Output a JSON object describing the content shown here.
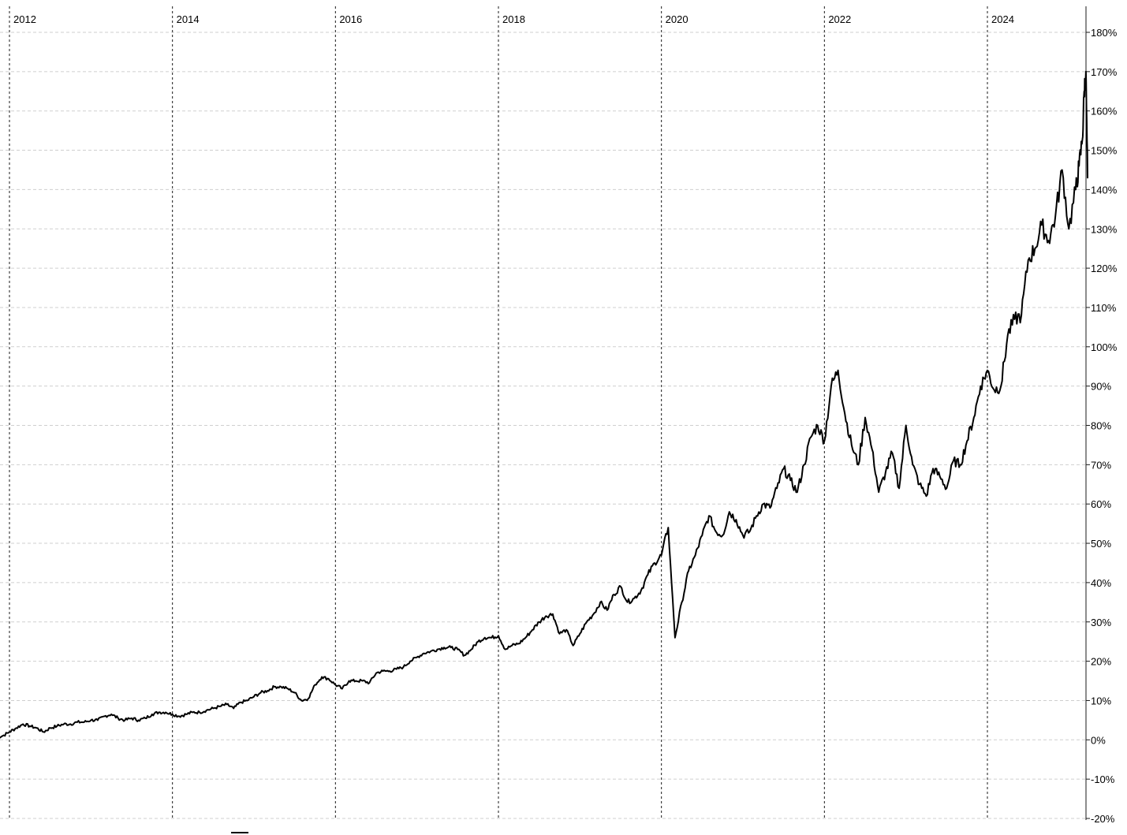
{
  "chart_data": {
    "type": "line",
    "title": "",
    "xlabel": "",
    "ylabel": "",
    "x_ticks": [
      "2012",
      "2014",
      "2016",
      "2018",
      "2020",
      "2022",
      "2024"
    ],
    "y_ticks": [
      "180%",
      "170%",
      "160%",
      "150%",
      "140%",
      "130%",
      "120%",
      "110%",
      "100%",
      "90%",
      "80%",
      "70%",
      "60%",
      "50%",
      "40%",
      "30%",
      "20%",
      "10%",
      "0%",
      "-10%",
      "-20%"
    ],
    "ylim": [
      -20,
      180
    ],
    "xlim": [
      "2011-11",
      "2025-03"
    ],
    "grid": true,
    "y_axis_position": "right",
    "series": [
      {
        "name": "",
        "color": "#000000",
        "points": [
          [
            "2011-11",
            0.5
          ],
          [
            "2011-12",
            1.0
          ],
          [
            "2012-01",
            2.0
          ],
          [
            "2012-02",
            3.0
          ],
          [
            "2012-03",
            4.0
          ],
          [
            "2012-04",
            3.5
          ],
          [
            "2012-05",
            3.0
          ],
          [
            "2012-06",
            2.0
          ],
          [
            "2012-07",
            3.0
          ],
          [
            "2012-08",
            3.5
          ],
          [
            "2012-09",
            4.0
          ],
          [
            "2012-10",
            4.0
          ],
          [
            "2012-11",
            4.5
          ],
          [
            "2012-12",
            4.5
          ],
          [
            "2013-01",
            5.0
          ],
          [
            "2013-02",
            5.0
          ],
          [
            "2013-03",
            6.0
          ],
          [
            "2013-04",
            6.5
          ],
          [
            "2013-05",
            5.5
          ],
          [
            "2013-06",
            5.0
          ],
          [
            "2013-07",
            5.5
          ],
          [
            "2013-08",
            5.0
          ],
          [
            "2013-09",
            5.5
          ],
          [
            "2013-10",
            6.5
          ],
          [
            "2013-11",
            7.0
          ],
          [
            "2013-12",
            7.0
          ],
          [
            "2014-01",
            6.5
          ],
          [
            "2014-02",
            6.0
          ],
          [
            "2014-03",
            6.5
          ],
          [
            "2014-04",
            7.0
          ],
          [
            "2014-05",
            7.0
          ],
          [
            "2014-06",
            7.5
          ],
          [
            "2014-07",
            8.0
          ],
          [
            "2014-08",
            8.5
          ],
          [
            "2014-09",
            9.0
          ],
          [
            "2014-10",
            8.0
          ],
          [
            "2014-11",
            9.5
          ],
          [
            "2014-12",
            10.0
          ],
          [
            "2015-01",
            11.0
          ],
          [
            "2015-02",
            12.0
          ],
          [
            "2015-03",
            12.5
          ],
          [
            "2015-04",
            13.5
          ],
          [
            "2015-05",
            13.5
          ],
          [
            "2015-06",
            13.0
          ],
          [
            "2015-07",
            12.0
          ],
          [
            "2015-08",
            10.0
          ],
          [
            "2015-09",
            10.5
          ],
          [
            "2015-10",
            14.0
          ],
          [
            "2015-11",
            16.0
          ],
          [
            "2015-12",
            15.5
          ],
          [
            "2016-01",
            14.0
          ],
          [
            "2016-02",
            13.0
          ],
          [
            "2016-03",
            15.0
          ],
          [
            "2016-04",
            15.0
          ],
          [
            "2016-05",
            15.0
          ],
          [
            "2016-06",
            14.5
          ],
          [
            "2016-07",
            17.0
          ],
          [
            "2016-08",
            17.5
          ],
          [
            "2016-09",
            17.5
          ],
          [
            "2016-10",
            18.0
          ],
          [
            "2016-11",
            18.5
          ],
          [
            "2016-12",
            20.0
          ],
          [
            "2017-01",
            21.0
          ],
          [
            "2017-02",
            22.0
          ],
          [
            "2017-03",
            22.5
          ],
          [
            "2017-04",
            23.0
          ],
          [
            "2017-05",
            23.5
          ],
          [
            "2017-06",
            23.5
          ],
          [
            "2017-07",
            23.0
          ],
          [
            "2017-08",
            21.5
          ],
          [
            "2017-09",
            23.0
          ],
          [
            "2017-10",
            25.0
          ],
          [
            "2017-11",
            26.0
          ],
          [
            "2017-12",
            26.0
          ],
          [
            "2018-01",
            26.5
          ],
          [
            "2018-02",
            23.0
          ],
          [
            "2018-03",
            24.0
          ],
          [
            "2018-04",
            24.5
          ],
          [
            "2018-05",
            26.0
          ],
          [
            "2018-06",
            28.0
          ],
          [
            "2018-07",
            30.0
          ],
          [
            "2018-08",
            31.5
          ],
          [
            "2018-09",
            32.0
          ],
          [
            "2018-10",
            27.0
          ],
          [
            "2018-11",
            28.0
          ],
          [
            "2018-12",
            24.0
          ],
          [
            "2019-01",
            27.0
          ],
          [
            "2019-02",
            30.0
          ],
          [
            "2019-03",
            32.0
          ],
          [
            "2019-04",
            35.0
          ],
          [
            "2019-05",
            33.0
          ],
          [
            "2019-06",
            37.0
          ],
          [
            "2019-07",
            39.0
          ],
          [
            "2019-08",
            35.0
          ],
          [
            "2019-09",
            36.0
          ],
          [
            "2019-10",
            38.0
          ],
          [
            "2019-11",
            42.0
          ],
          [
            "2019-12",
            45.0
          ],
          [
            "2020-01",
            47.0
          ],
          [
            "2020-02",
            54.0
          ],
          [
            "2020-03",
            26.0
          ],
          [
            "2020-04",
            35.0
          ],
          [
            "2020-05",
            43.0
          ],
          [
            "2020-06",
            47.0
          ],
          [
            "2020-07",
            52.0
          ],
          [
            "2020-08",
            57.0
          ],
          [
            "2020-09",
            53.0
          ],
          [
            "2020-10",
            52.0
          ],
          [
            "2020-11",
            58.0
          ],
          [
            "2020-12",
            56.0
          ],
          [
            "2021-01",
            52.0
          ],
          [
            "2021-02",
            53.0
          ],
          [
            "2021-03",
            57.0
          ],
          [
            "2021-04",
            60.0
          ],
          [
            "2021-05",
            59.0
          ],
          [
            "2021-06",
            64.0
          ],
          [
            "2021-07",
            69.0
          ],
          [
            "2021-08",
            66.0
          ],
          [
            "2021-09",
            63.0
          ],
          [
            "2021-10",
            70.0
          ],
          [
            "2021-11",
            77.0
          ],
          [
            "2021-12",
            80.0
          ],
          [
            "2022-01",
            76.0
          ],
          [
            "2022-02",
            90.0
          ],
          [
            "2022-03",
            94.0
          ],
          [
            "2022-04",
            83.0
          ],
          [
            "2022-05",
            75.0
          ],
          [
            "2022-06",
            70.0
          ],
          [
            "2022-07",
            82.0
          ],
          [
            "2022-08",
            74.0
          ],
          [
            "2022-09",
            63.0
          ],
          [
            "2022-10",
            68.0
          ],
          [
            "2022-11",
            73.0
          ],
          [
            "2022-12",
            64.0
          ],
          [
            "2023-01",
            80.0
          ],
          [
            "2023-02",
            70.0
          ],
          [
            "2023-03",
            65.0
          ],
          [
            "2023-04",
            62.0
          ],
          [
            "2023-05",
            69.0
          ],
          [
            "2023-06",
            67.0
          ],
          [
            "2023-07",
            64.0
          ],
          [
            "2023-08",
            71.0
          ],
          [
            "2023-09",
            70.0
          ],
          [
            "2023-10",
            76.0
          ],
          [
            "2023-11",
            82.0
          ],
          [
            "2023-12",
            90.0
          ],
          [
            "2024-01",
            94.0
          ],
          [
            "2024-02",
            89.0
          ],
          [
            "2024-03",
            90.0
          ],
          [
            "2024-04",
            103.0
          ],
          [
            "2024-05",
            107.0
          ],
          [
            "2024-06",
            108.0
          ],
          [
            "2024-07",
            122.0
          ],
          [
            "2024-08",
            125.0
          ],
          [
            "2024-09",
            131.0
          ],
          [
            "2024-10",
            127.0
          ],
          [
            "2024-11",
            133.0
          ],
          [
            "2024-12",
            145.0
          ],
          [
            "2025-01",
            130.0
          ],
          [
            "2025-02",
            140.0
          ],
          [
            "2025-02",
            146.0
          ],
          [
            "2025-03",
            153.0
          ],
          [
            "2025-03",
            165.0
          ],
          [
            "2025-03",
            170.0
          ],
          [
            "2025-03",
            143.0
          ]
        ]
      }
    ]
  }
}
